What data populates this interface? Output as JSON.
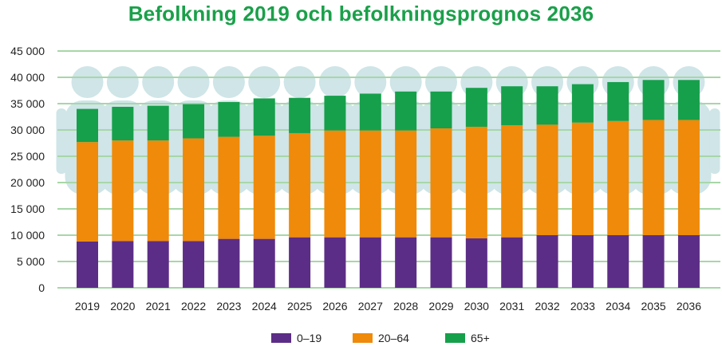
{
  "colors": {
    "age_0_19": "#5c2d86",
    "age_20_64": "#ef8a0a",
    "age_65_plus": "#16a04b",
    "gridline": "#a8d6a8",
    "silhouette": "#cfe5e7",
    "title": "#1aa04a"
  },
  "chart_data": {
    "type": "bar",
    "stacked": true,
    "title": "Befolkning 2019 och befolkningsprognos 2036",
    "xlabel": "",
    "ylabel": "",
    "ylim": [
      0,
      45000
    ],
    "yticks": [
      0,
      5000,
      10000,
      15000,
      20000,
      25000,
      30000,
      35000,
      40000,
      45000
    ],
    "ytick_labels": [
      "0",
      "5 000",
      "10 000",
      "15 000",
      "20 000",
      "25 000",
      "30 000",
      "35 000",
      "40 000",
      "45 000"
    ],
    "grid": true,
    "legend_position": "bottom",
    "categories": [
      "2019",
      "2020",
      "2021",
      "2022",
      "2023",
      "2024",
      "2025",
      "2026",
      "2027",
      "2028",
      "2029",
      "2030",
      "2031",
      "2032",
      "2033",
      "2034",
      "2035",
      "2036"
    ],
    "series": [
      {
        "name": "0–19",
        "color_key": "age_0_19",
        "values": [
          8800,
          8900,
          8900,
          8900,
          9300,
          9300,
          9600,
          9600,
          9600,
          9600,
          9600,
          9400,
          9600,
          10000,
          10000,
          10000,
          10000,
          10000
        ]
      },
      {
        "name": "20–64",
        "color_key": "age_20_64",
        "values": [
          18900,
          19100,
          19100,
          19500,
          19400,
          19600,
          19800,
          20300,
          20300,
          20300,
          20700,
          21200,
          21300,
          21000,
          21400,
          21700,
          21900,
          21900
        ]
      },
      {
        "name": "65+",
        "color_key": "age_65_plus",
        "values": [
          6300,
          6400,
          6600,
          6500,
          6600,
          7100,
          6700,
          6600,
          7000,
          7400,
          7000,
          7400,
          7400,
          7300,
          7300,
          7400,
          7600,
          7600
        ]
      }
    ]
  }
}
